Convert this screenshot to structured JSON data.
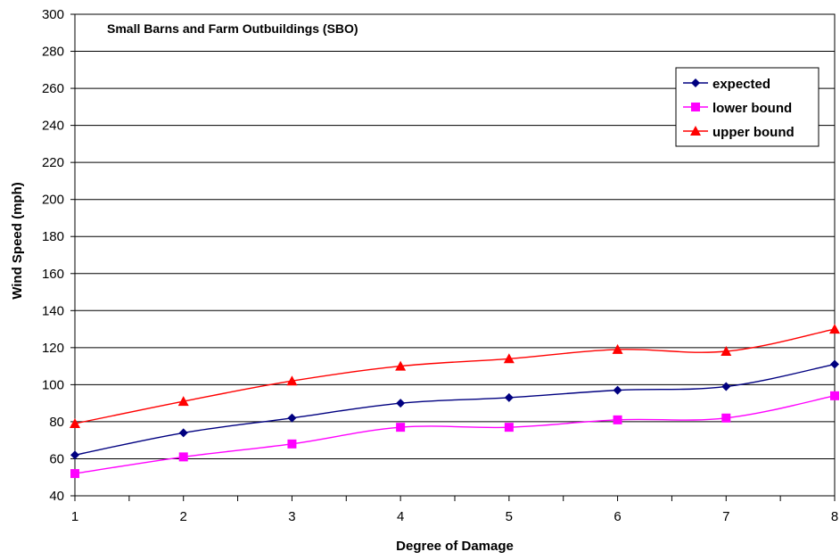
{
  "chart_data": {
    "type": "line",
    "title": "Small Barns and Farm Outbuildings (SBO)",
    "xlabel": "Degree of Damage",
    "ylabel": "Wind Speed (mph)",
    "x": [
      1,
      2,
      3,
      4,
      5,
      6,
      7,
      8
    ],
    "xlim": [
      1,
      8
    ],
    "ylim": [
      40,
      300
    ],
    "yticks": [
      40,
      60,
      80,
      100,
      120,
      140,
      160,
      180,
      200,
      220,
      240,
      260,
      280,
      300
    ],
    "xticks": [
      1,
      2,
      3,
      4,
      5,
      6,
      7,
      8
    ],
    "grid": "horizontal",
    "legend_position": "top-right",
    "series": [
      {
        "name": "expected",
        "color": "#000080",
        "marker": "diamond",
        "values": [
          62,
          74,
          82,
          90,
          93,
          97,
          99,
          111
        ]
      },
      {
        "name": "lower bound",
        "color": "#ff00ff",
        "marker": "square",
        "values": [
          52,
          61,
          68,
          77,
          77,
          81,
          82,
          94
        ]
      },
      {
        "name": "upper bound",
        "color": "#ff0000",
        "marker": "triangle",
        "values": [
          79,
          91,
          102,
          110,
          114,
          119,
          118,
          130
        ]
      }
    ]
  }
}
